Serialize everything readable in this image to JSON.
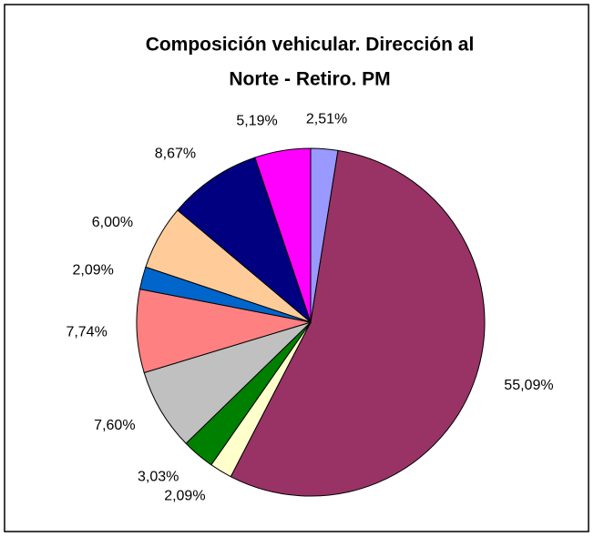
{
  "chart_data": {
    "type": "pie",
    "title": [
      "Composición vehicular. Dirección al",
      "Norte - Retiro. PM"
    ],
    "values": [
      2.51,
      55.09,
      2.09,
      3.03,
      7.6,
      7.74,
      2.09,
      6.0,
      8.67,
      5.19
    ],
    "value_labels": [
      "2,51%",
      "55,09%",
      "2,09%",
      "3,03%",
      "7,60%",
      "7,74%",
      "2,09%",
      "6,00%",
      "8,67%",
      "5,19%"
    ],
    "colors": [
      "#9999ff",
      "#993366",
      "#ffffcc",
      "#008000",
      "#c0c0c0",
      "#ff8080",
      "#0066cc",
      "#ffcc99",
      "#000080",
      "#ff00ff"
    ]
  }
}
